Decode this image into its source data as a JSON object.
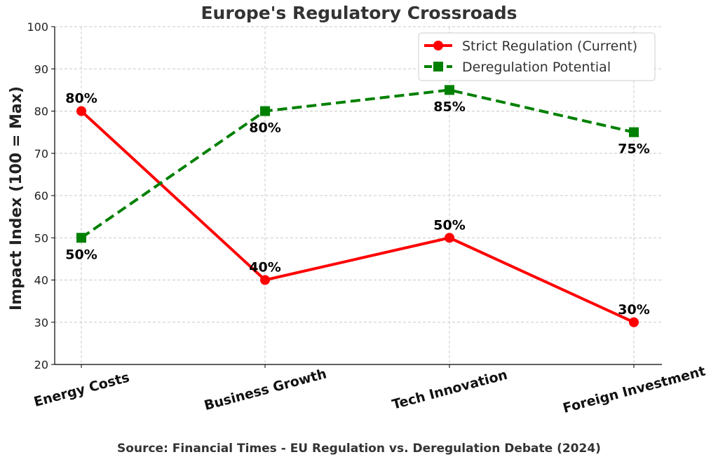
{
  "chart_data": {
    "type": "line",
    "title": "Europe's Regulatory Crossroads",
    "ylabel": "Impact Index (100 = Max)",
    "xlabel": "",
    "categories": [
      "Energy Costs",
      "Business Growth",
      "Tech Innovation",
      "Foreign Investment"
    ],
    "ylim": [
      20,
      100
    ],
    "yticks": [
      20,
      30,
      40,
      50,
      60,
      70,
      80,
      90,
      100
    ],
    "grid": true,
    "legend_position": "top-right",
    "series": [
      {
        "name": "Strict Regulation (Current)",
        "values": [
          80,
          40,
          50,
          30
        ],
        "labels": [
          "80%",
          "40%",
          "50%",
          "30%"
        ],
        "color": "#ff0000",
        "style": "solid",
        "marker": "circle"
      },
      {
        "name": "Deregulation Potential",
        "values": [
          50,
          80,
          85,
          75
        ],
        "labels": [
          "50%",
          "80%",
          "85%",
          "75%"
        ],
        "color": "#008000",
        "style": "dashed",
        "marker": "square"
      }
    ],
    "source": "Source: Financial Times - EU Regulation vs. Deregulation Debate (2024)"
  }
}
